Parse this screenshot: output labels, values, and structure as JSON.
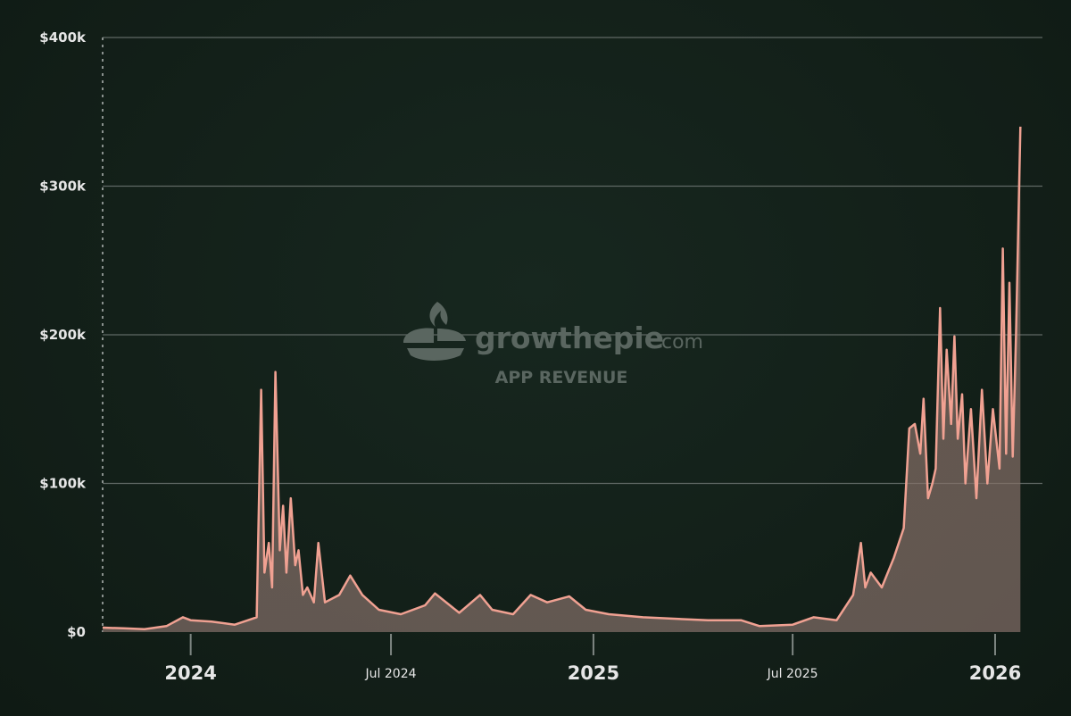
{
  "watermark": {
    "brand": "growthepie",
    "brand_suffix": ".com",
    "label": "APP REVENUE"
  },
  "colors": {
    "line": "#f0a192",
    "grid": "#5f6864",
    "text": "#e6e6e6",
    "watermark": "#5a6660"
  },
  "chart_data": {
    "type": "area",
    "title": "",
    "xlabel": "",
    "ylabel": "",
    "grid": true,
    "legend": "none",
    "x_range": [
      "2023-10-13",
      "2026-02-13"
    ],
    "ylim": [
      0,
      400000
    ],
    "y_ticks": [
      {
        "value": 0,
        "label": "$0"
      },
      {
        "value": 100000,
        "label": "$100k"
      },
      {
        "value": 200000,
        "label": "$200k"
      },
      {
        "value": 300000,
        "label": "$300k"
      },
      {
        "value": 400000,
        "label": "$400k"
      }
    ],
    "x_ticks": [
      {
        "date": "2024-01-01",
        "label": "2024",
        "major": true
      },
      {
        "date": "2024-07-01",
        "label": "Jul 2024",
        "major": false
      },
      {
        "date": "2025-01-01",
        "label": "2025",
        "major": true
      },
      {
        "date": "2025-07-01",
        "label": "Jul 2025",
        "major": false
      },
      {
        "date": "2026-01-01",
        "label": "2026",
        "major": true
      }
    ],
    "series": [
      {
        "values": [
          [
            "2023-10-13",
            3000
          ],
          [
            "2023-11-01",
            2500
          ],
          [
            "2023-11-20",
            2000
          ],
          [
            "2023-12-10",
            4000
          ],
          [
            "2023-12-25",
            10000
          ],
          [
            "2024-01-01",
            8000
          ],
          [
            "2024-01-20",
            7000
          ],
          [
            "2024-02-10",
            5000
          ],
          [
            "2024-03-01",
            10000
          ],
          [
            "2024-03-05",
            163000
          ],
          [
            "2024-03-08",
            40000
          ],
          [
            "2024-03-12",
            60000
          ],
          [
            "2024-03-15",
            30000
          ],
          [
            "2024-03-18",
            175000
          ],
          [
            "2024-03-22",
            55000
          ],
          [
            "2024-03-25",
            85000
          ],
          [
            "2024-03-28",
            40000
          ],
          [
            "2024-04-01",
            90000
          ],
          [
            "2024-04-05",
            45000
          ],
          [
            "2024-04-08",
            55000
          ],
          [
            "2024-04-12",
            25000
          ],
          [
            "2024-04-16",
            30000
          ],
          [
            "2024-04-22",
            20000
          ],
          [
            "2024-04-26",
            60000
          ],
          [
            "2024-05-02",
            20000
          ],
          [
            "2024-05-15",
            25000
          ],
          [
            "2024-05-25",
            38000
          ],
          [
            "2024-06-05",
            25000
          ],
          [
            "2024-06-20",
            15000
          ],
          [
            "2024-07-10",
            12000
          ],
          [
            "2024-08-01",
            18000
          ],
          [
            "2024-08-10",
            26000
          ],
          [
            "2024-09-01",
            13000
          ],
          [
            "2024-09-20",
            25000
          ],
          [
            "2024-10-01",
            15000
          ],
          [
            "2024-10-20",
            12000
          ],
          [
            "2024-11-05",
            25000
          ],
          [
            "2024-11-20",
            20000
          ],
          [
            "2024-12-10",
            24000
          ],
          [
            "2024-12-25",
            15000
          ],
          [
            "2025-01-15",
            12000
          ],
          [
            "2025-02-15",
            10000
          ],
          [
            "2025-03-15",
            9000
          ],
          [
            "2025-04-15",
            8000
          ],
          [
            "2025-05-15",
            8000
          ],
          [
            "2025-06-01",
            4000
          ],
          [
            "2025-07-01",
            5000
          ],
          [
            "2025-07-20",
            10000
          ],
          [
            "2025-08-10",
            8000
          ],
          [
            "2025-08-25",
            25000
          ],
          [
            "2025-09-01",
            60000
          ],
          [
            "2025-09-05",
            30000
          ],
          [
            "2025-09-10",
            40000
          ],
          [
            "2025-09-20",
            30000
          ],
          [
            "2025-10-01",
            50000
          ],
          [
            "2025-10-10",
            70000
          ],
          [
            "2025-10-15",
            137000
          ],
          [
            "2025-10-20",
            140000
          ],
          [
            "2025-10-25",
            120000
          ],
          [
            "2025-10-28",
            157000
          ],
          [
            "2025-11-01",
            90000
          ],
          [
            "2025-11-05",
            100000
          ],
          [
            "2025-11-08",
            110000
          ],
          [
            "2025-11-12",
            218000
          ],
          [
            "2025-11-15",
            130000
          ],
          [
            "2025-11-18",
            190000
          ],
          [
            "2025-11-22",
            140000
          ],
          [
            "2025-11-25",
            199000
          ],
          [
            "2025-11-28",
            130000
          ],
          [
            "2025-12-02",
            160000
          ],
          [
            "2025-12-05",
            100000
          ],
          [
            "2025-12-10",
            150000
          ],
          [
            "2025-12-15",
            90000
          ],
          [
            "2025-12-20",
            163000
          ],
          [
            "2025-12-25",
            100000
          ],
          [
            "2025-12-30",
            150000
          ],
          [
            "2026-01-05",
            110000
          ],
          [
            "2026-01-08",
            258000
          ],
          [
            "2026-01-11",
            120000
          ],
          [
            "2026-01-14",
            235000
          ],
          [
            "2026-01-17",
            118000
          ],
          [
            "2026-01-20",
            200000
          ],
          [
            "2026-01-24",
            340000
          ]
        ]
      }
    ]
  }
}
